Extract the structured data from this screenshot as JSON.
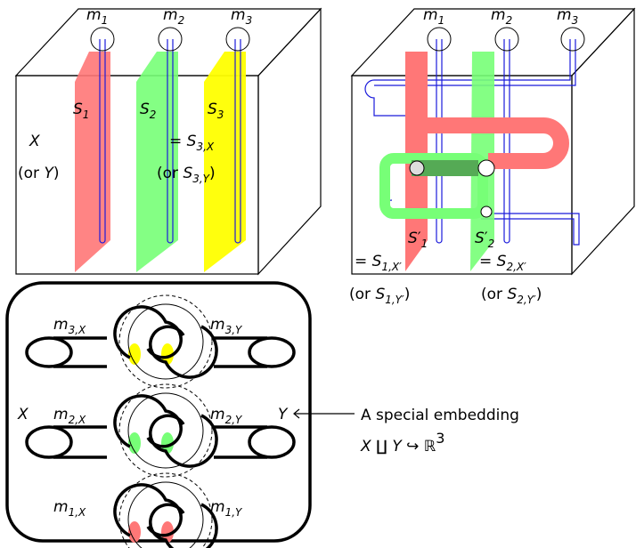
{
  "labels": [
    {
      "main": "m",
      "sub": "1"
    },
    {
      "main": "m",
      "sub": "2"
    },
    {
      "main": "m",
      "sub": "3"
    },
    {
      "main": "S",
      "sub": "1"
    },
    {
      "main": "S",
      "sub": "2"
    },
    {
      "main": "S",
      "sub": "3"
    },
    {
      "main": "X"
    },
    {
      "pre": "(or ",
      "main": "Y",
      "post": ")"
    },
    {
      "pre": "= ",
      "main": "S",
      "sub": "3,X"
    },
    {
      "pre": "(or ",
      "main": "S",
      "sub": "3,Y",
      "post": ")"
    },
    {
      "main": "m",
      "sub": "1"
    },
    {
      "main": "m",
      "sub": "2"
    },
    {
      "main": "m",
      "sub": "3"
    },
    {
      "main": "S",
      "prime": "′",
      "sub": "1"
    },
    {
      "main": "S",
      "prime": "′",
      "sub": "2"
    },
    {
      "pre": "= ",
      "main": "S",
      "sub": "1,X′"
    },
    {
      "pre": "= ",
      "main": "S",
      "sub": "2,X′"
    },
    {
      "pre": "(or ",
      "main": "S",
      "sub": "1,Y′",
      "post": ")"
    },
    {
      "pre": "(or ",
      "main": "S",
      "sub": "2,Y′",
      "post": ")"
    },
    {
      "main": "m",
      "sub": "3,X"
    },
    {
      "main": "m",
      "sub": "3,Y"
    },
    {
      "main": "m",
      "sub": "2,X"
    },
    {
      "main": "m",
      "sub": "2,Y"
    },
    {
      "main": "m",
      "sub": "1,X"
    },
    {
      "main": "m",
      "sub": "1,Y"
    },
    {
      "main": "X"
    },
    {
      "main": "Y"
    },
    {
      "pre": "A special embedding"
    },
    {
      "main": "X ∐ Y ↪ ℝ",
      "sup": "3"
    }
  ]
}
